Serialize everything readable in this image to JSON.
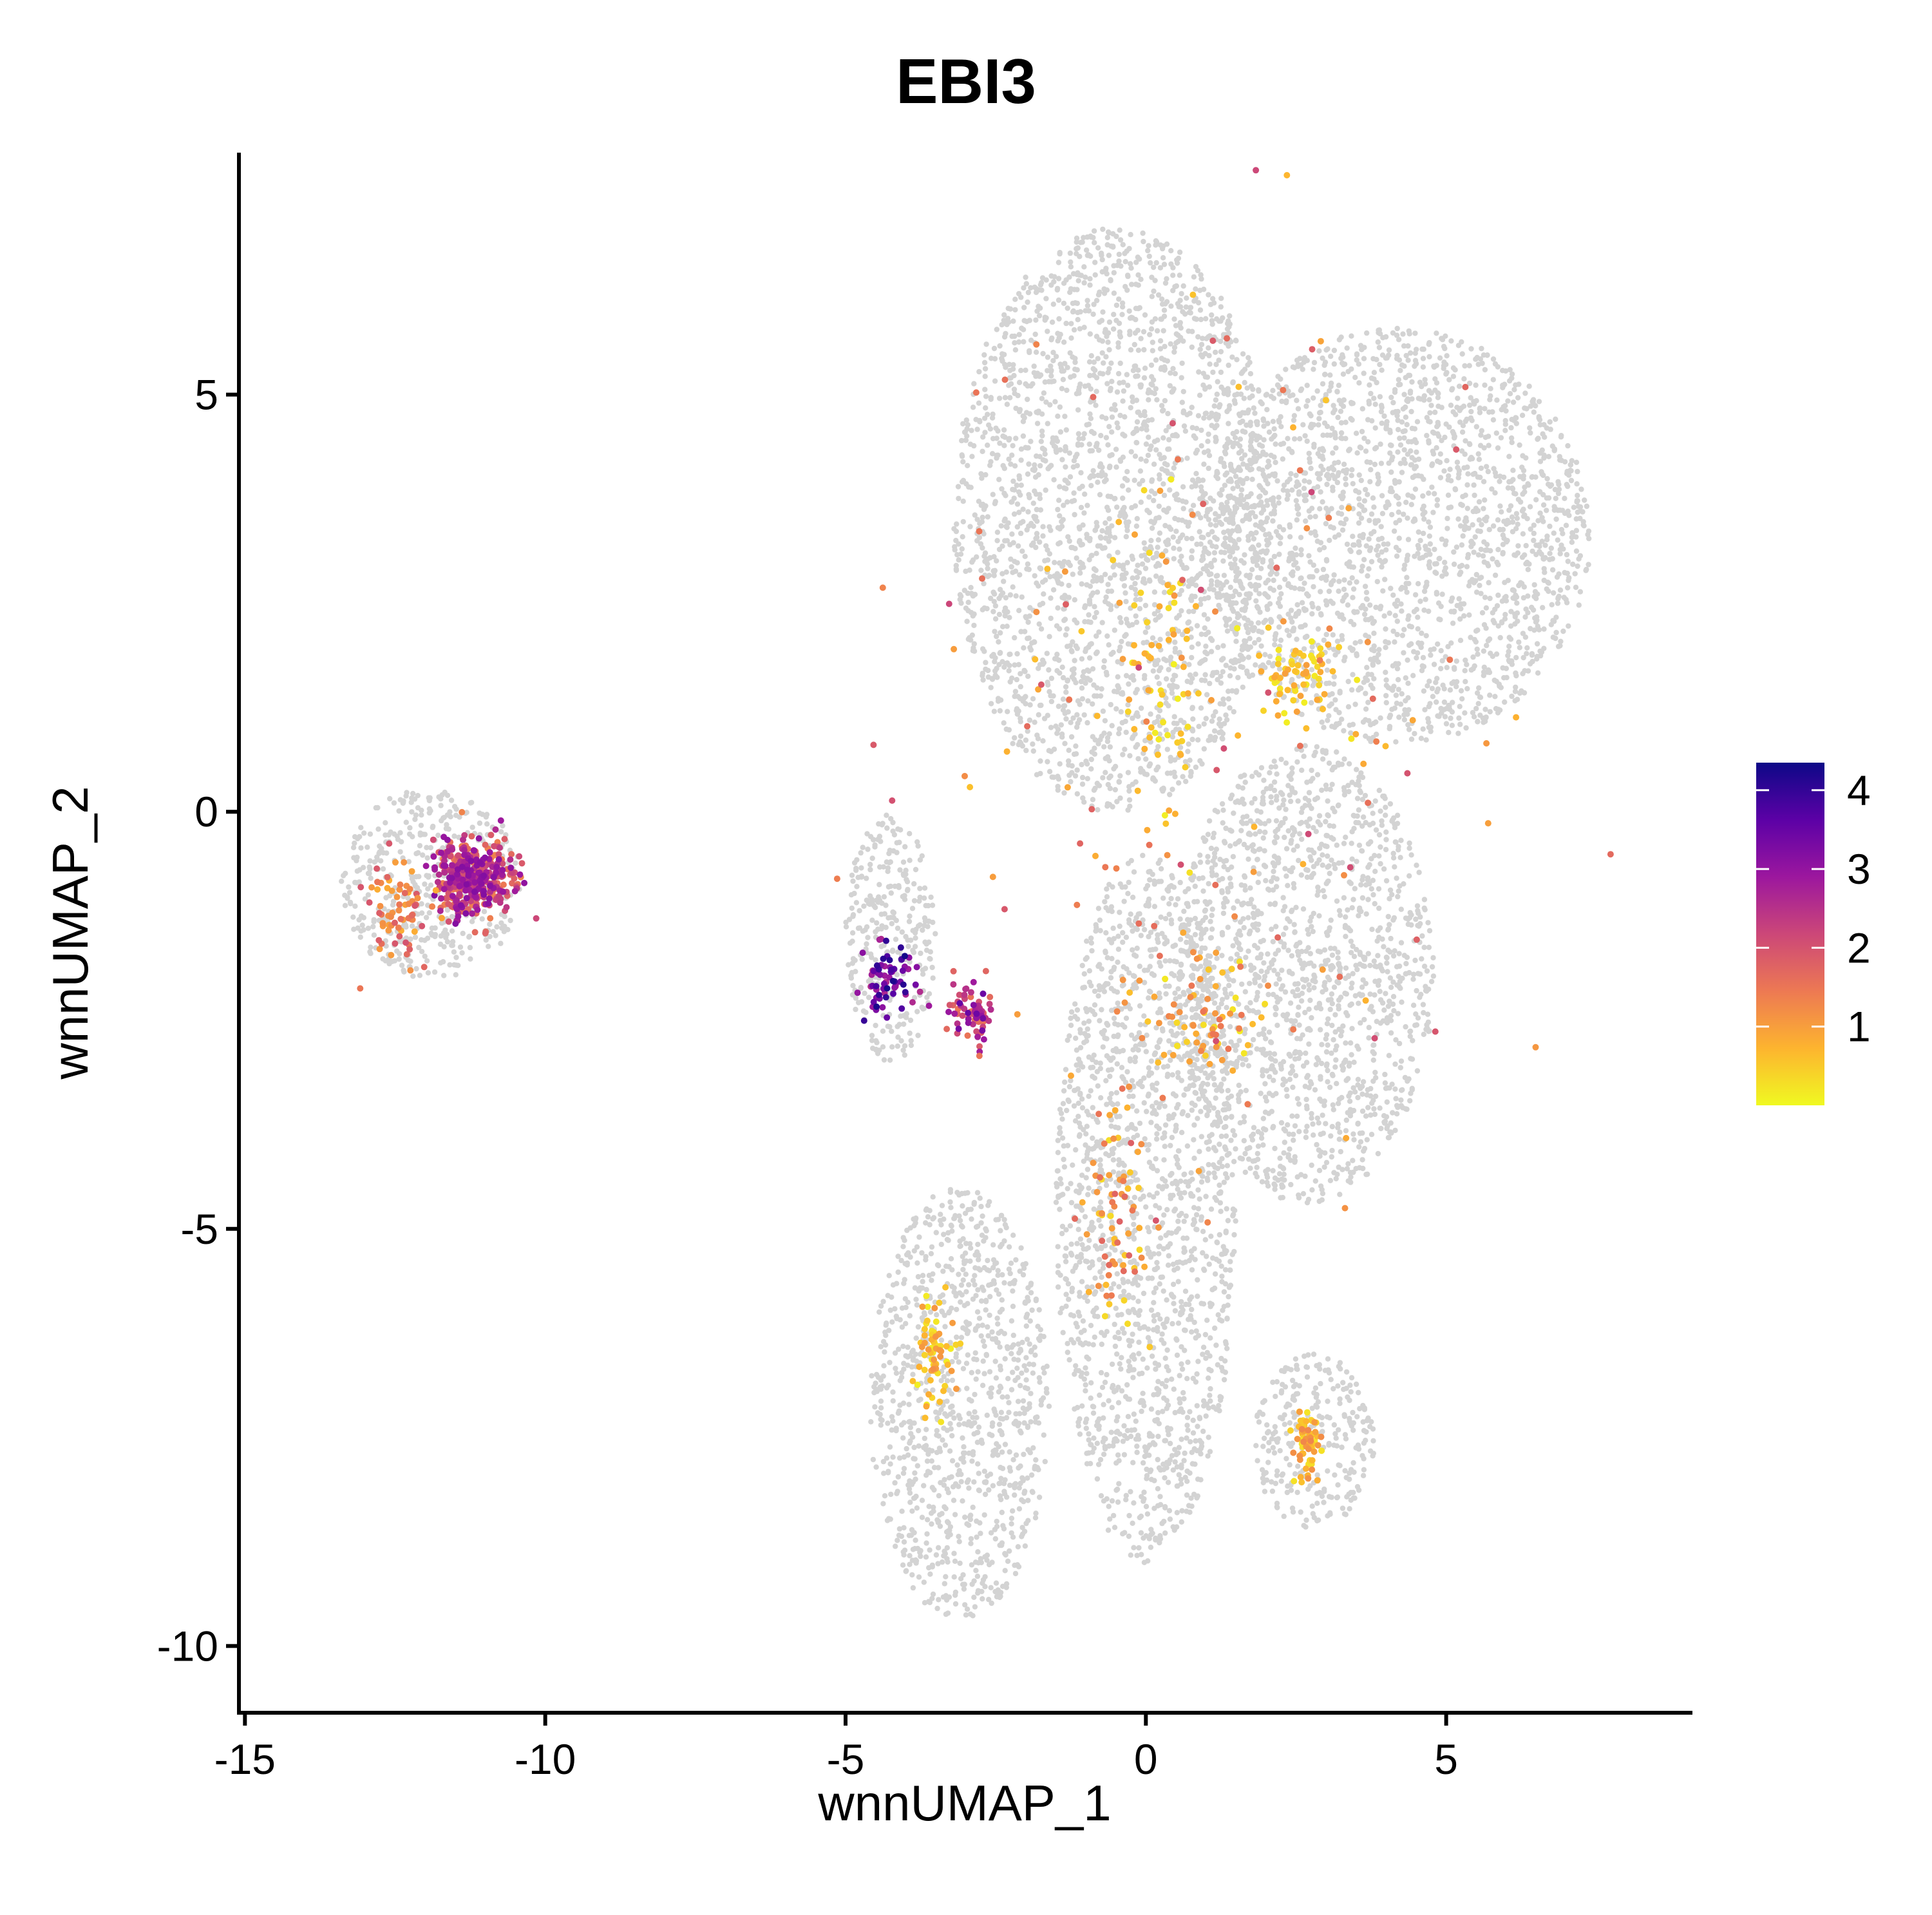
{
  "chart_data": {
    "type": "scatter",
    "title": "EBI3",
    "xlabel": "wnnUMAP_1",
    "ylabel": "wnnUMAP_2",
    "xlim": [
      -15.1,
      9.1
    ],
    "ylim": [
      -10.8,
      7.9
    ],
    "xticks": [
      -15,
      -10,
      -5,
      0,
      5
    ],
    "xtick_labels": [
      "-15",
      "-10",
      "-5",
      "0",
      "5"
    ],
    "yticks": [
      5,
      0,
      -5,
      -10
    ],
    "ytick_labels": [
      "5",
      "0",
      "-5",
      "-10"
    ],
    "grid": false,
    "background_color": "#d3d3d3",
    "colorbar": {
      "min": 0,
      "max": 4.35,
      "ticks": [
        1,
        2,
        3,
        4
      ],
      "tick_labels": [
        "1",
        "2",
        "3",
        "4"
      ],
      "colormap": "plasma (reversed)",
      "colors": [
        "#f0f921",
        "#fdb42f",
        "#ed7953",
        "#cc4778",
        "#9c179e",
        "#5c01a6",
        "#0d0887"
      ],
      "placement": "right"
    },
    "background_regions": [
      {
        "cluster": "left island",
        "x": [
          -13.4,
          -10.4
        ],
        "y": [
          -2.0,
          0.3
        ]
      },
      {
        "cluster": "main upper",
        "x": [
          -3.2,
          2.2
        ],
        "y": [
          0.0,
          7.0
        ]
      },
      {
        "cluster": "right arm",
        "x": [
          1.0,
          7.4
        ],
        "y": [
          0.8,
          5.8
        ]
      },
      {
        "cluster": "right lobe",
        "x": [
          0.5,
          4.8
        ],
        "y": [
          -4.7,
          0.8
        ]
      },
      {
        "cluster": "central stalk",
        "x": [
          -1.5,
          1.5
        ],
        "y": [
          -9.0,
          -0.5
        ]
      },
      {
        "cluster": "left lower",
        "x": [
          -4.6,
          -1.6
        ],
        "y": [
          -9.7,
          -4.5
        ]
      },
      {
        "cluster": "bottom right",
        "x": [
          1.8,
          3.8
        ],
        "y": [
          -8.6,
          -6.5
        ]
      },
      {
        "cluster": "left mid",
        "x": [
          -5.0,
          -3.5
        ],
        "y": [
          -3.0,
          0.0
        ]
      }
    ],
    "expressing_groups": [
      {
        "cluster": "left island dense",
        "x_center": -11.2,
        "y_center": -0.8,
        "x_spread": 0.55,
        "y_spread": 0.35,
        "value_range": [
          1.3,
          3.2
        ]
      },
      {
        "cluster": "left island sparse",
        "x_center": -12.4,
        "y_center": -1.2,
        "x_spread": 0.5,
        "y_spread": 0.55,
        "value_range": [
          0.8,
          2.0
        ]
      },
      {
        "cluster": "arc",
        "x_center": -4.3,
        "y_center": -2.0,
        "x_spread": 0.4,
        "y_spread": 0.4,
        "value_range": [
          2.5,
          4.3
        ]
      },
      {
        "cluster": "arc clump",
        "x_center": -2.9,
        "y_center": -2.4,
        "x_spread": 0.3,
        "y_spread": 0.3,
        "value_range": [
          1.5,
          3.5
        ]
      },
      {
        "cluster": "central",
        "x_center": 0.9,
        "y_center": -2.5,
        "x_spread": 0.9,
        "y_spread": 0.6,
        "value_range": [
          0.1,
          1.5
        ]
      },
      {
        "cluster": "stalk",
        "x_center": -0.5,
        "y_center": -5.0,
        "x_spread": 0.4,
        "y_spread": 1.2,
        "value_range": [
          0.3,
          1.8
        ]
      },
      {
        "cluster": "right arm",
        "x_center": 2.5,
        "y_center": 1.6,
        "x_spread": 0.6,
        "y_spread": 0.4,
        "value_range": [
          0.1,
          1.0
        ]
      },
      {
        "cluster": "upper",
        "x_center": 0.2,
        "y_center": 1.5,
        "x_spread": 0.6,
        "y_spread": 1.5,
        "value_range": [
          0.1,
          1.0
        ]
      },
      {
        "cluster": "left lower",
        "x_center": -3.5,
        "y_center": -6.5,
        "x_spread": 0.25,
        "y_spread": 0.6,
        "value_range": [
          0.1,
          1.2
        ]
      },
      {
        "cluster": "bottom right",
        "x_center": 2.7,
        "y_center": -7.6,
        "x_spread": 0.2,
        "y_spread": 0.4,
        "value_range": [
          0.2,
          1.3
        ]
      },
      {
        "cluster": "scattered",
        "x_center": 1.0,
        "y_center": 1.0,
        "x_spread": 4.0,
        "y_spread": 4.5,
        "value_range": [
          0.5,
          2.2
        ]
      }
    ]
  }
}
